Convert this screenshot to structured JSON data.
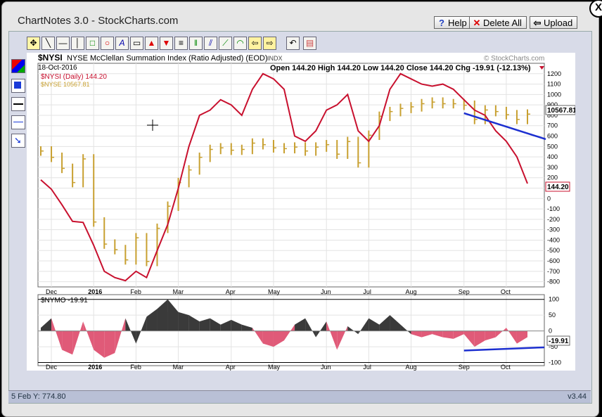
{
  "app": {
    "title": "ChartNotes 3.0 - StockCharts.com",
    "buttons": {
      "help": "Help",
      "delete_all": "Delete All",
      "upload": "Upload"
    },
    "close_glyph": "X",
    "version": "v3.44",
    "status_text": "5 Feb Y: 774.80"
  },
  "toolbar": {
    "tools": [
      "pointer-icon",
      "line-icon",
      "horizontal-line-icon",
      "vertical-line-icon",
      "rectangle-icon",
      "ellipse-icon",
      "text-icon",
      "callout-icon",
      "arrow-up-icon",
      "arrow-down-icon",
      "fib-lines-icon",
      "vertical-grid-icon",
      "channel-icon",
      "gann-fan-icon",
      "fib-arcs-icon",
      "move-left-icon",
      "move-right-icon",
      "undo-icon",
      "settings-icon"
    ],
    "side_tools": [
      "color-picker-icon",
      "fill-color-icon",
      "line-thick-icon",
      "line-thin-icon",
      "arrow-style-icon"
    ]
  },
  "header": {
    "symbol": "$NYSI",
    "name": "NYSE McClellan Summation Index (Ratio Adjusted) (EOD)",
    "exchange": "INDX",
    "watermark": "© StockCharts.com",
    "date": "18-Oct-2016",
    "ohlc_text": "Open 144.20  High 144.20  Low 144.20  Close 144.20  Chg -19.91 (-12.13%)",
    "legend1": "$NYSI (Daily) 144.20",
    "legend2": "$NYSE 10567.81",
    "nyse_price_label": "10567.81",
    "nysi_value_label": "144.20",
    "lower_legend": "$NYMO -19.91",
    "nymo_value_label": "-19.91"
  },
  "colors": {
    "nysi": "#c8102e",
    "nyse": "#c8a030",
    "trend": "#1c2fd0",
    "pos_fill": "#3a3a3a",
    "neg_fill": "#e05a78"
  },
  "chart_data": [
    {
      "type": "line",
      "title": "$NYSI NYSE McClellan Summation Index (Ratio Adjusted) (EOD)",
      "x": [
        "Dec 1",
        "Dec 8",
        "Dec 15",
        "Dec 22",
        "Dec 29",
        "Jan 5",
        "Jan 12",
        "Jan 19",
        "Jan 26",
        "Feb 2",
        "Feb 9",
        "Feb 16",
        "Feb 23",
        "Mar 1",
        "Mar 8",
        "Mar 15",
        "Mar 22",
        "Mar 29",
        "Apr 5",
        "Apr 12",
        "Apr 19",
        "Apr 26",
        "May 3",
        "May 10",
        "May 17",
        "May 24",
        "May 31",
        "Jun 7",
        "Jun 14",
        "Jun 21",
        "Jun 28",
        "Jul 5",
        "Jul 12",
        "Jul 19",
        "Jul 26",
        "Aug 2",
        "Aug 9",
        "Aug 16",
        "Aug 23",
        "Aug 30",
        "Sep 6",
        "Sep 13",
        "Sep 20",
        "Sep 27",
        "Oct 4",
        "Oct 11",
        "Oct 18"
      ],
      "series": [
        {
          "name": "$NYSI (Daily)",
          "axis": "right",
          "values": [
            180,
            90,
            -60,
            -220,
            -230,
            -450,
            -700,
            -760,
            -790,
            -700,
            -760,
            -500,
            -250,
            100,
            500,
            800,
            850,
            950,
            900,
            800,
            1050,
            1200,
            1150,
            1050,
            600,
            550,
            650,
            850,
            900,
            1000,
            650,
            550,
            700,
            1050,
            1200,
            1150,
            1100,
            1080,
            1100,
            1050,
            950,
            850,
            800,
            650,
            550,
            400,
            144.2
          ]
        },
        {
          "name": "$NYSE",
          "axis": "left",
          "values": [
            10100,
            10020,
            9880,
            9700,
            10000,
            9200,
            8920,
            8850,
            8720,
            9000,
            8700,
            9120,
            9400,
            9700,
            9860,
            10020,
            10120,
            10140,
            10110,
            10120,
            10200,
            10180,
            10140,
            10130,
            10150,
            10100,
            10150,
            10180,
            10060,
            10220,
            9950,
            10300,
            10540,
            10600,
            10640,
            10660,
            10700,
            10720,
            10700,
            10700,
            10680,
            10500,
            10620,
            10600,
            10560,
            10500,
            10567.81
          ]
        }
      ],
      "yticks_right": [
        1200,
        1100,
        1000,
        900,
        800,
        700,
        600,
        500,
        400,
        300,
        200,
        100,
        0,
        -100,
        -200,
        -300,
        -400,
        -500,
        -600,
        -700,
        -800
      ],
      "ylim": [
        -850,
        1300
      ],
      "xticks": [
        "Dec",
        "2016",
        "Feb",
        "Mar",
        "Apr",
        "May",
        "Jun",
        "Jul",
        "Aug",
        "Sep",
        "Oct"
      ],
      "grid": true,
      "annotations": [
        "trendline NYSE Sep to Oct (falling)",
        "trendline NYSI Sep to Oct (falling)"
      ]
    },
    {
      "type": "area",
      "title": "$NYMO -19.91",
      "x": [
        "Dec 1",
        "Dec 8",
        "Dec 15",
        "Dec 22",
        "Dec 29",
        "Jan 5",
        "Jan 12",
        "Jan 19",
        "Jan 26",
        "Feb 2",
        "Feb 9",
        "Feb 16",
        "Feb 23",
        "Mar 1",
        "Mar 8",
        "Mar 15",
        "Mar 22",
        "Mar 29",
        "Apr 5",
        "Apr 12",
        "Apr 19",
        "Apr 26",
        "May 3",
        "May 10",
        "May 17",
        "May 24",
        "May 31",
        "Jun 7",
        "Jun 14",
        "Jun 21",
        "Jun 28",
        "Jul 5",
        "Jul 12",
        "Jul 19",
        "Jul 26",
        "Aug 2",
        "Aug 9",
        "Aug 16",
        "Aug 23",
        "Aug 30",
        "Sep 6",
        "Sep 13",
        "Sep 20",
        "Sep 27",
        "Oct 4",
        "Oct 11",
        "Oct 18"
      ],
      "series": [
        {
          "name": "$NYMO",
          "values": [
            10,
            40,
            -60,
            -75,
            30,
            -60,
            -85,
            -70,
            40,
            -40,
            45,
            70,
            100,
            60,
            50,
            30,
            40,
            20,
            35,
            20,
            10,
            -40,
            -50,
            -30,
            20,
            40,
            -20,
            30,
            -60,
            15,
            -10,
            40,
            20,
            50,
            20,
            -10,
            -20,
            -10,
            -20,
            -25,
            -10,
            -50,
            -30,
            -20,
            10,
            -40,
            -19.91
          ]
        }
      ],
      "yticks": [
        100,
        50,
        0,
        -50,
        -100
      ],
      "ylim": [
        -110,
        115
      ],
      "grid": true,
      "annotations": [
        "trendline NYMO lows Sep to Oct (rising)"
      ]
    }
  ]
}
